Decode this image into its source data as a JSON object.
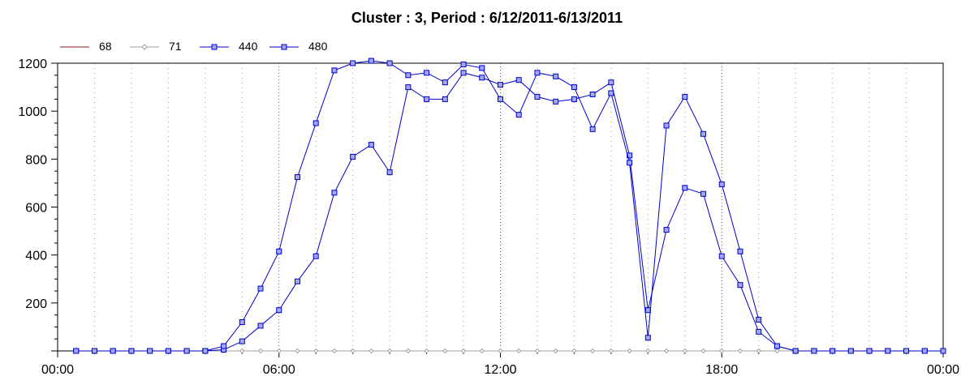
{
  "chart_data": {
    "type": "line",
    "title": "Cluster : 3, Period : 6/12/2011-6/13/2011",
    "xlabel": "",
    "ylabel": "",
    "xlim_hours": [
      0,
      24
    ],
    "ylim": [
      0,
      1200
    ],
    "x_ticks": [
      "00:00",
      "06:00",
      "12:00",
      "18:00",
      "00:00"
    ],
    "y_ticks": [
      200,
      400,
      600,
      800,
      1000,
      1200
    ],
    "grid": "vertical dotted",
    "legend_position": "top-left",
    "x_hours": [
      0.5,
      1,
      1.5,
      2,
      2.5,
      3,
      3.5,
      4,
      4.5,
      5,
      5.5,
      6,
      6.5,
      7,
      7.5,
      8,
      8.5,
      9,
      9.5,
      10,
      10.5,
      11,
      11.5,
      12,
      12.5,
      13,
      13.5,
      14,
      14.5,
      15,
      15.5,
      16,
      16.5,
      17,
      17.5,
      18,
      18.5,
      19,
      19.5,
      20,
      20.5,
      21,
      21.5,
      22,
      22.5,
      23,
      23.5,
      24
    ],
    "series": [
      {
        "name": "68",
        "color": "#8b1a1a",
        "marker": "none",
        "values": [
          0,
          0,
          0,
          0,
          0,
          0,
          0,
          0,
          0,
          0,
          0,
          0,
          0,
          0,
          0,
          0,
          0,
          0,
          0,
          0,
          0,
          0,
          0,
          0,
          0,
          0,
          0,
          0,
          0,
          0,
          0,
          0,
          0,
          0,
          0,
          0,
          0,
          0,
          0,
          0,
          0,
          0,
          0,
          0,
          0,
          0,
          0,
          0
        ]
      },
      {
        "name": "71",
        "color": "#a0a0a0",
        "marker": "diamond",
        "values": [
          0,
          0,
          0,
          0,
          0,
          0,
          0,
          0,
          0,
          0,
          0,
          0,
          0,
          0,
          0,
          0,
          0,
          0,
          0,
          0,
          0,
          0,
          0,
          0,
          0,
          0,
          0,
          0,
          0,
          0,
          0,
          0,
          0,
          0,
          0,
          0,
          0,
          0,
          0,
          0,
          0,
          0,
          0,
          0,
          0,
          0,
          0,
          0
        ]
      },
      {
        "name": "440",
        "color": "#0000cc",
        "marker": "square",
        "values": [
          0,
          0,
          0,
          0,
          0,
          0,
          0,
          0,
          5,
          40,
          105,
          170,
          290,
          395,
          660,
          810,
          860,
          745,
          1100,
          1050,
          1050,
          1160,
          1140,
          1110,
          1130,
          1060,
          1040,
          1050,
          1070,
          1120,
          815,
          170,
          505,
          680,
          655,
          395,
          275,
          80,
          20,
          0,
          0,
          0,
          0,
          0,
          0,
          0,
          0,
          0
        ]
      },
      {
        "name": "480",
        "color": "#0000cc",
        "marker": "square",
        "values": [
          0,
          0,
          0,
          0,
          0,
          0,
          0,
          0,
          20,
          120,
          260,
          415,
          725,
          950,
          1170,
          1200,
          1210,
          1200,
          1150,
          1160,
          1120,
          1195,
          1180,
          1050,
          985,
          1160,
          1145,
          1100,
          925,
          1075,
          785,
          55,
          940,
          1060,
          905,
          695,
          415,
          130,
          20,
          0,
          0,
          0,
          0,
          0,
          0,
          0,
          0,
          0
        ]
      }
    ]
  }
}
